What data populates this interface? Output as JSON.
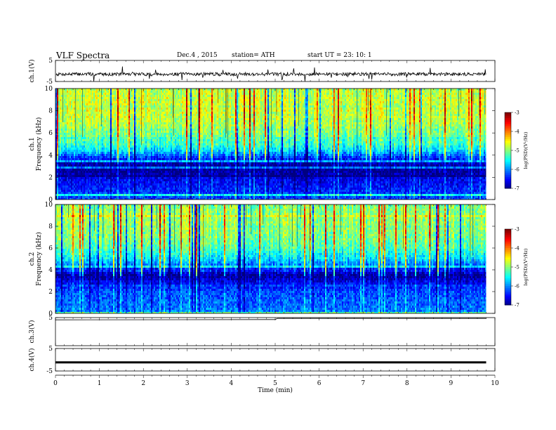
{
  "header": {
    "title": "VLF  Spectra",
    "date": "Dec.4  , 2015",
    "station": "station= ATH",
    "start": "start  UT  =    23: 10: 1"
  },
  "chart_data": [
    {
      "type": "line",
      "panel": "ch1-waveform",
      "ylabel": "ch.1(V)",
      "ylim": [
        -5,
        5
      ],
      "yticks": [
        "5",
        "-5"
      ],
      "xlim": [
        0,
        10
      ],
      "baseline": -1.5,
      "color": "#000000"
    },
    {
      "type": "heatmap",
      "panel": "ch1-spectrogram",
      "ylabel": "ch.1\nFrequency (kHz)",
      "ylim": [
        0,
        10
      ],
      "yticks": [
        "0",
        "2",
        "4",
        "6",
        "8",
        "10"
      ],
      "xlim": [
        0,
        9.8
      ],
      "profile_khz": [
        0,
        1,
        2,
        2.5,
        3,
        3.5,
        4,
        4.5,
        5,
        6,
        7,
        8,
        9,
        10
      ],
      "profile_logpsd": [
        -6.2,
        -6.4,
        -6.6,
        -6.9,
        -6.95,
        -6.6,
        -6.1,
        -5.6,
        -5.3,
        -5.0,
        -4.8,
        -4.7,
        -4.7,
        -4.8
      ],
      "colorbar": {
        "label": "log(PSD)(V²/Hz)",
        "range": [
          -7,
          -3
        ],
        "ticks": [
          "-3",
          "-4",
          "-5",
          "-6",
          "-7"
        ]
      }
    },
    {
      "type": "heatmap",
      "panel": "ch2-spectrogram",
      "ylabel": "ch.2\nFrequency (kHz)",
      "ylim": [
        0,
        10
      ],
      "yticks": [
        "0",
        "2",
        "4",
        "6",
        "8",
        "10"
      ],
      "xlim": [
        0,
        9.8
      ],
      "profile_khz": [
        0,
        1,
        2,
        2.5,
        3,
        3.5,
        4,
        4.5,
        5,
        6,
        7,
        8,
        9,
        10
      ],
      "profile_logpsd": [
        -6.0,
        -6.1,
        -6.2,
        -6.4,
        -6.6,
        -6.9,
        -6.5,
        -6.0,
        -5.6,
        -5.2,
        -5.0,
        -4.9,
        -4.9,
        -5.0
      ],
      "colorbar": {
        "label": "log(PSD)(V²/Hz)",
        "range": [
          -7,
          -3
        ],
        "ticks": [
          "-3",
          "-4",
          "-5",
          "-6",
          "-7"
        ]
      }
    },
    {
      "type": "line",
      "panel": "ch3-waveform",
      "ylabel": "ch.3(V)",
      "ylim": [
        -5,
        5
      ],
      "yticks": [
        "5"
      ],
      "xlim": [
        0,
        10
      ],
      "x": [
        0,
        5,
        5.05,
        9.8
      ],
      "y": [
        4.2,
        4.3,
        4.7,
        4.7
      ],
      "color": "#000000"
    },
    {
      "type": "line",
      "panel": "ch4-waveform",
      "ylabel": "ch.4(V)",
      "ylim": [
        -5,
        5
      ],
      "yticks": [
        "5",
        "-5"
      ],
      "xlim": [
        0,
        10
      ],
      "x": [
        0,
        9.8
      ],
      "y": [
        -1.2,
        -1.2
      ],
      "color": "#000000"
    }
  ],
  "xaxis": {
    "label": "Time  (min)",
    "ticks": [
      "0",
      "1",
      "2",
      "3",
      "4",
      "5",
      "6",
      "7",
      "8",
      "9",
      "10"
    ]
  }
}
